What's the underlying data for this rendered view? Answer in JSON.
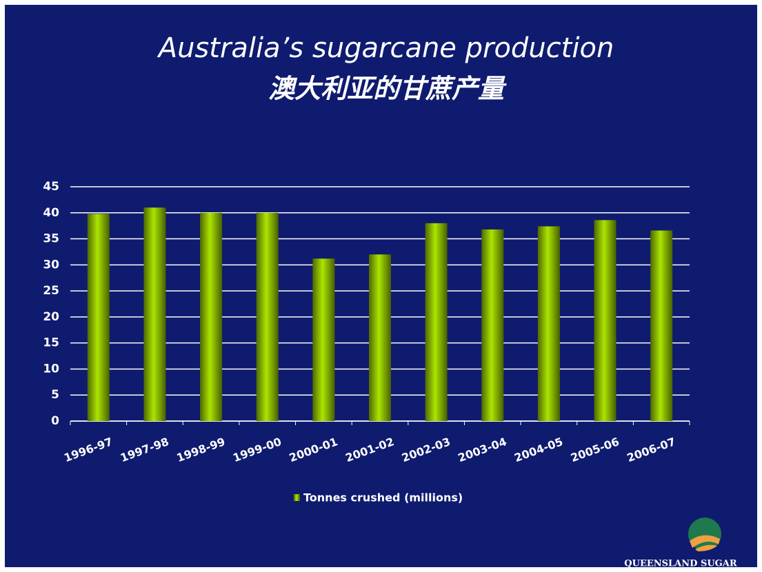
{
  "chart_data": {
    "type": "bar",
    "title": "Australia’s sugarcane production",
    "subtitle": "澳大利亚的甘蔗产量",
    "categories": [
      "1996-97",
      "1997-98",
      "1998-99",
      "1999-00",
      "2000-01",
      "2001-02",
      "2002-03",
      "2003-04",
      "2004-05",
      "2005-06",
      "2006-07"
    ],
    "series": [
      {
        "name": "Tonnes crushed (millions)",
        "color": "#8fbf00",
        "values": [
          39.8,
          41,
          40,
          40,
          31.2,
          32,
          38,
          36.8,
          37.4,
          38.6,
          36.6
        ]
      }
    ],
    "ylim": [
      0,
      45
    ],
    "yticks": [
      0,
      5,
      10,
      15,
      20,
      25,
      30,
      35,
      40,
      45
    ],
    "grid": true,
    "legend": "bottom",
    "logo": "QUEENSLAND SUGAR"
  }
}
